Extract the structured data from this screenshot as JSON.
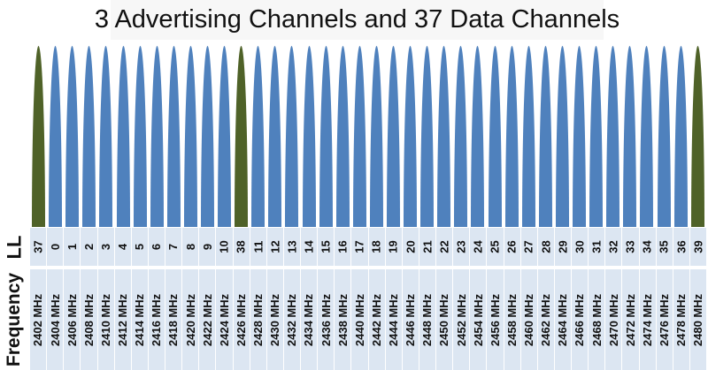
{
  "title": "3 Advertising Channels and 37 Data Channels",
  "row_labels": {
    "ll": "LL",
    "frequency": "Frequency"
  },
  "colors": {
    "data_channel": "#4f81bd",
    "advertising_channel": "#4f6228",
    "cell_bg": "#dce6f2"
  },
  "channels": [
    {
      "ll": "37",
      "freq": "2402 MHz",
      "type": "advertising"
    },
    {
      "ll": "0",
      "freq": "2404 MHz",
      "type": "data"
    },
    {
      "ll": "1",
      "freq": "2406 MHz",
      "type": "data"
    },
    {
      "ll": "2",
      "freq": "2408 MHz",
      "type": "data"
    },
    {
      "ll": "3",
      "freq": "2410 MHz",
      "type": "data"
    },
    {
      "ll": "4",
      "freq": "2412 MHz",
      "type": "data"
    },
    {
      "ll": "5",
      "freq": "2414 MHz",
      "type": "data"
    },
    {
      "ll": "6",
      "freq": "2416 MHz",
      "type": "data"
    },
    {
      "ll": "7",
      "freq": "2418 MHz",
      "type": "data"
    },
    {
      "ll": "8",
      "freq": "2420 MHz",
      "type": "data"
    },
    {
      "ll": "9",
      "freq": "2422 MHz",
      "type": "data"
    },
    {
      "ll": "10",
      "freq": "2424 MHz",
      "type": "data"
    },
    {
      "ll": "38",
      "freq": "2426 MHz",
      "type": "advertising"
    },
    {
      "ll": "11",
      "freq": "2428 MHz",
      "type": "data"
    },
    {
      "ll": "12",
      "freq": "2430 MHz",
      "type": "data"
    },
    {
      "ll": "13",
      "freq": "2432 MHz",
      "type": "data"
    },
    {
      "ll": "14",
      "freq": "2434 MHz",
      "type": "data"
    },
    {
      "ll": "15",
      "freq": "2436 MHz",
      "type": "data"
    },
    {
      "ll": "16",
      "freq": "2438 MHz",
      "type": "data"
    },
    {
      "ll": "17",
      "freq": "2440 MHz",
      "type": "data"
    },
    {
      "ll": "18",
      "freq": "2442 MHz",
      "type": "data"
    },
    {
      "ll": "19",
      "freq": "2444 MHz",
      "type": "data"
    },
    {
      "ll": "20",
      "freq": "2446 MHz",
      "type": "data"
    },
    {
      "ll": "21",
      "freq": "2448 MHz",
      "type": "data"
    },
    {
      "ll": "22",
      "freq": "2450 MHz",
      "type": "data"
    },
    {
      "ll": "23",
      "freq": "2452 MHz",
      "type": "data"
    },
    {
      "ll": "24",
      "freq": "2454 MHz",
      "type": "data"
    },
    {
      "ll": "25",
      "freq": "2456 MHz",
      "type": "data"
    },
    {
      "ll": "26",
      "freq": "2458 MHz",
      "type": "data"
    },
    {
      "ll": "27",
      "freq": "2460 MHz",
      "type": "data"
    },
    {
      "ll": "28",
      "freq": "2462 MHz",
      "type": "data"
    },
    {
      "ll": "29",
      "freq": "2464 MHz",
      "type": "data"
    },
    {
      "ll": "30",
      "freq": "2466 MHz",
      "type": "data"
    },
    {
      "ll": "31",
      "freq": "2468 MHz",
      "type": "data"
    },
    {
      "ll": "32",
      "freq": "2470 MHz",
      "type": "data"
    },
    {
      "ll": "33",
      "freq": "2472 MHz",
      "type": "data"
    },
    {
      "ll": "34",
      "freq": "2474 MHz",
      "type": "data"
    },
    {
      "ll": "35",
      "freq": "2476 MHz",
      "type": "data"
    },
    {
      "ll": "36",
      "freq": "2478 MHz",
      "type": "data"
    },
    {
      "ll": "39",
      "freq": "2480 MHz",
      "type": "advertising"
    }
  ]
}
